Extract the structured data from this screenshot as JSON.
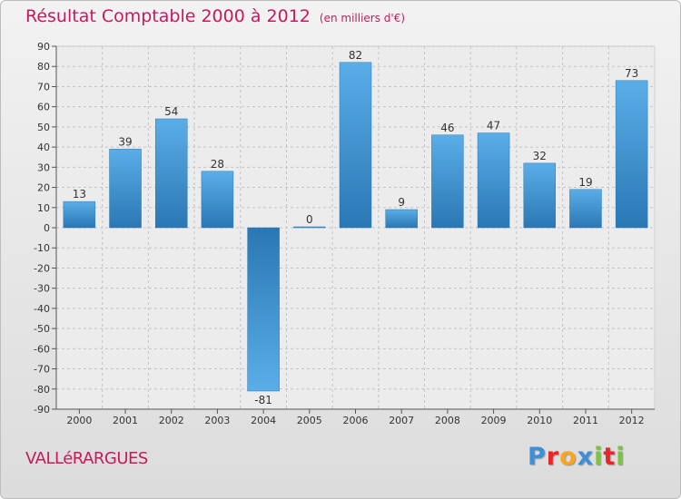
{
  "header": {
    "title": "Résultat Comptable 2000 à 2012",
    "subtitle": "(en milliers d'€)"
  },
  "footer": {
    "commune": "VALLéRARGUES",
    "logo_letters": [
      "P",
      "r",
      "o",
      "x",
      "i",
      "t",
      "i"
    ],
    "logo_colors": [
      "#3d8fd6",
      "#e8262a",
      "#f5a623",
      "#3d8fd6",
      "#7dc242",
      "#e8262a",
      "#7dc242"
    ]
  },
  "colors": {
    "bar_dark": "#2a77b4",
    "bar_light": "#5aaee8",
    "title": "#c8195e",
    "grid": "#c4c4c4"
  },
  "chart_data": {
    "type": "bar",
    "title": "Résultat Comptable 2000 à 2012",
    "xlabel": "",
    "ylabel": "",
    "categories": [
      "2000",
      "2001",
      "2002",
      "2003",
      "2004",
      "2005",
      "2006",
      "2007",
      "2008",
      "2009",
      "2010",
      "2011",
      "2012"
    ],
    "values": [
      13,
      39,
      54,
      28,
      -81,
      0,
      82,
      9,
      46,
      47,
      32,
      19,
      73
    ],
    "data_labels": [
      "13",
      "39",
      "54",
      "28",
      "-81",
      "0",
      "82",
      "9",
      "46",
      "47",
      "32",
      "19",
      "73"
    ],
    "ylim": [
      -90,
      90
    ],
    "yticks": [
      90,
      80,
      70,
      60,
      50,
      40,
      30,
      20,
      10,
      0,
      -10,
      -20,
      -30,
      -40,
      -50,
      -60,
      -70,
      -80,
      -90
    ],
    "ytick_labels": [
      "90",
      "80",
      "70",
      "60",
      "50",
      "40",
      "30",
      "20",
      "10",
      "0",
      "-10",
      "-20",
      "-30",
      "-40",
      "-50",
      "-60",
      "-70",
      "-80",
      "-90"
    ],
    "grid": true
  }
}
